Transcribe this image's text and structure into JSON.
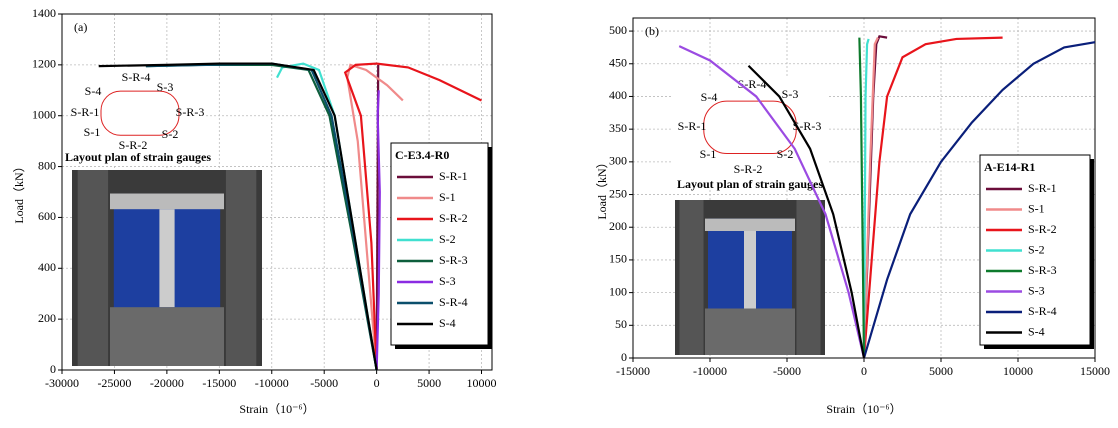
{
  "chart_data": [
    {
      "type": "line",
      "panel_label": "(a)",
      "legend_title": "C-E3.4-R0",
      "x_label": "Strain（10⁻⁶）",
      "y_label": "Load（kN）",
      "xlim": [
        -30000,
        11000
      ],
      "ylim": [
        0,
        1400
      ],
      "xticks": [
        -30000,
        -25000,
        -20000,
        -15000,
        -10000,
        -5000,
        0,
        5000,
        10000
      ],
      "yticks": [
        0,
        200,
        400,
        600,
        800,
        1000,
        1200,
        1400
      ],
      "grid": true,
      "inset_labels": [
        "S-4",
        "S-R-4",
        "S-3",
        "S-R-1",
        "S-R-3",
        "S-1",
        "S-R-2",
        "S-2",
        "Layout plan of strain gauges"
      ],
      "series": [
        {
          "name": "S-R-1",
          "color": "#6b0d3a",
          "x": [
            0,
            50,
            100,
            150
          ],
          "values": [
            0,
            400,
            800,
            1200
          ]
        },
        {
          "name": "S-1",
          "color": "#f08a8a",
          "x": [
            0,
            -800,
            -1800,
            -2800,
            -2500,
            -1000,
            1000,
            2500
          ],
          "values": [
            0,
            400,
            900,
            1150,
            1200,
            1180,
            1120,
            1060
          ]
        },
        {
          "name": "S-R-2",
          "color": "#e8141b",
          "x": [
            0,
            -500,
            -1500,
            -3000,
            -2000,
            0,
            3000,
            6000,
            10000
          ],
          "values": [
            0,
            500,
            1000,
            1170,
            1200,
            1205,
            1190,
            1140,
            1060
          ]
        },
        {
          "name": "S-2",
          "color": "#40e0d0",
          "x": [
            0,
            -2000,
            -4000,
            -5500,
            -7000,
            -9000,
            -9500
          ],
          "values": [
            0,
            500,
            1000,
            1180,
            1205,
            1190,
            1150
          ]
        },
        {
          "name": "S-R-3",
          "color": "#0d5e3c",
          "x": [
            0,
            -2200,
            -4500,
            -6500,
            -10000,
            -17000,
            -22000
          ],
          "values": [
            0,
            500,
            1000,
            1180,
            1200,
            1200,
            1195
          ]
        },
        {
          "name": "S-3",
          "color": "#8b2be2",
          "x": [
            0,
            200,
            300,
            100,
            200
          ],
          "values": [
            0,
            300,
            700,
            1000,
            1100
          ]
        },
        {
          "name": "S-R-4",
          "color": "#0b4f6c",
          "x": [
            0,
            -2100,
            -4300,
            -6200,
            -10000,
            -22000
          ],
          "values": [
            0,
            500,
            1000,
            1180,
            1205,
            1195
          ]
        },
        {
          "name": "S-4",
          "color": "#000000",
          "x": [
            0,
            -2000,
            -4000,
            -6000,
            -10000,
            -15000,
            -20000,
            -26500
          ],
          "values": [
            0,
            500,
            1000,
            1180,
            1205,
            1205,
            1200,
            1195
          ]
        }
      ]
    },
    {
      "type": "line",
      "panel_label": "(b)",
      "legend_title": "A-E14-R1",
      "x_label": "Strain（10⁻⁶）",
      "y_label": "Load（kN）",
      "xlim": [
        -15000,
        15000
      ],
      "ylim": [
        0,
        520
      ],
      "xticks": [
        -15000,
        -10000,
        -5000,
        0,
        5000,
        10000,
        15000
      ],
      "yticks": [
        0,
        50,
        100,
        150,
        200,
        250,
        300,
        350,
        400,
        450,
        500
      ],
      "grid": true,
      "inset_labels": [
        "S-4",
        "S-R-4",
        "S-3",
        "S-R-1",
        "S-R-3",
        "S-1",
        "S-R-2",
        "S-2",
        "Layout plan of strain gauges"
      ],
      "series": [
        {
          "name": "S-R-1",
          "color": "#6b0d3a",
          "x": [
            0,
            300,
            600,
            800,
            1000,
            1500
          ],
          "values": [
            0,
            200,
            400,
            480,
            492,
            490
          ]
        },
        {
          "name": "S-1",
          "color": "#f08a8a",
          "x": [
            0,
            400,
            700,
            900
          ],
          "values": [
            0,
            300,
            480,
            490
          ]
        },
        {
          "name": "S-R-2",
          "color": "#e8141b",
          "x": [
            0,
            500,
            1000,
            1500,
            2500,
            4000,
            6000,
            9000
          ],
          "values": [
            0,
            150,
            300,
            400,
            460,
            480,
            488,
            490
          ]
        },
        {
          "name": "S-2",
          "color": "#40e0d0",
          "x": [
            0,
            50,
            100,
            200,
            300
          ],
          "values": [
            0,
            200,
            400,
            480,
            488
          ]
        },
        {
          "name": "S-R-3",
          "color": "#0d7a2c",
          "x": [
            0,
            -100,
            -200,
            -300
          ],
          "values": [
            0,
            200,
            400,
            490
          ]
        },
        {
          "name": "S-3",
          "color": "#9b4be2",
          "x": [
            0,
            -1000,
            -2500,
            -4500,
            -7000,
            -10000,
            -12000
          ],
          "values": [
            0,
            100,
            220,
            320,
            400,
            455,
            477
          ]
        },
        {
          "name": "S-R-4",
          "color": "#0a1f7a",
          "x": [
            0,
            1500,
            3000,
            5000,
            7000,
            9000,
            11000,
            13000,
            15000
          ],
          "values": [
            0,
            120,
            220,
            300,
            360,
            410,
            450,
            475,
            483
          ]
        },
        {
          "name": "S-4",
          "color": "#000000",
          "x": [
            0,
            -800,
            -2000,
            -3500,
            -5500,
            -7500
          ],
          "values": [
            0,
            100,
            220,
            320,
            400,
            447
          ]
        }
      ]
    }
  ]
}
